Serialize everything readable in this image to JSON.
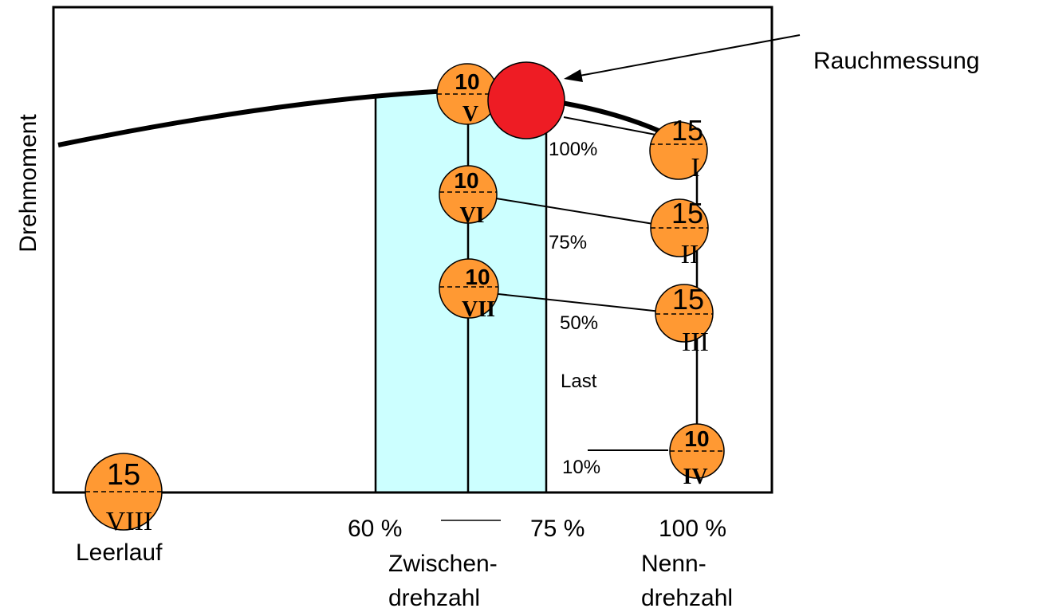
{
  "axis": {
    "ylabel": "Drehmoment"
  },
  "callout": {
    "label": "Rauchmessung",
    "fill": "#ee1c24"
  },
  "x_markers": {
    "m60": "60 %",
    "m75": "75 %",
    "m100": "100 %"
  },
  "x_captions": {
    "idle": "Leerlauf",
    "intermediate_line1": "Zwischen-",
    "intermediate_line2": "drehzahl",
    "rated_line1": "Nenn-",
    "rated_line2": "drehzahl"
  },
  "load_labels": {
    "l100": "100%",
    "l75": "75%",
    "l50": "50%",
    "l10": "10%",
    "title": "Last"
  },
  "colors": {
    "band": "#ccffff",
    "mode_fill": "#ff9933",
    "curve": "#000000"
  },
  "modes": [
    {
      "id": "I",
      "weight": "15",
      "roman": "I"
    },
    {
      "id": "II",
      "weight": "15",
      "roman": "II"
    },
    {
      "id": "III",
      "weight": "15",
      "roman": "III"
    },
    {
      "id": "IV",
      "weight": "10",
      "roman": "IV"
    },
    {
      "id": "V",
      "weight": "10",
      "roman": "V"
    },
    {
      "id": "VI",
      "weight": "10",
      "roman": "VI"
    },
    {
      "id": "VII",
      "weight": "10",
      "roman": "VII"
    },
    {
      "id": "VIII",
      "weight": "15",
      "roman": "VIII"
    }
  ]
}
